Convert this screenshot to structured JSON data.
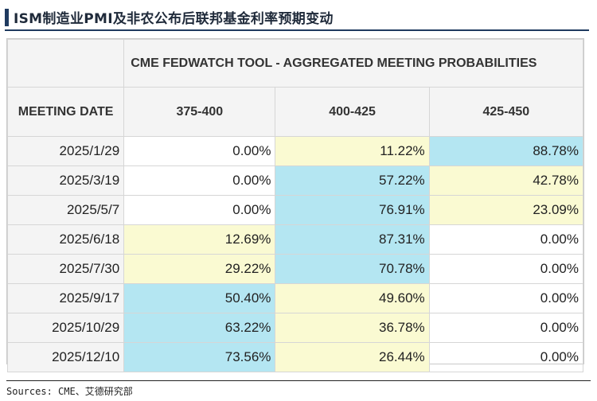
{
  "title": "ISM制造业PMI及非农公布后联邦基金利率预期变动",
  "table": {
    "banner": "CME FEDWATCH TOOL - AGGREGATED MEETING PROBABILITIES",
    "date_header": "MEETING DATE",
    "columns": [
      "375-400",
      "400-425",
      "425-450"
    ],
    "rows": [
      {
        "date": "2025/1/29",
        "values": [
          "0.00%",
          "11.22%",
          "88.78%"
        ],
        "highlights": [
          "none",
          "yellow",
          "blue"
        ]
      },
      {
        "date": "2025/3/19",
        "values": [
          "0.00%",
          "57.22%",
          "42.78%"
        ],
        "highlights": [
          "none",
          "blue",
          "yellow"
        ]
      },
      {
        "date": "2025/5/7",
        "values": [
          "0.00%",
          "76.91%",
          "23.09%"
        ],
        "highlights": [
          "none",
          "blue",
          "yellow"
        ]
      },
      {
        "date": "2025/6/18",
        "values": [
          "12.69%",
          "87.31%",
          "0.00%"
        ],
        "highlights": [
          "yellow",
          "blue",
          "none"
        ]
      },
      {
        "date": "2025/7/30",
        "values": [
          "29.22%",
          "70.78%",
          "0.00%"
        ],
        "highlights": [
          "yellow",
          "blue",
          "none"
        ]
      },
      {
        "date": "2025/9/17",
        "values": [
          "50.40%",
          "49.60%",
          "0.00%"
        ],
        "highlights": [
          "blue",
          "yellow",
          "none"
        ]
      },
      {
        "date": "2025/10/29",
        "values": [
          "63.22%",
          "36.78%",
          "0.00%"
        ],
        "highlights": [
          "blue",
          "yellow",
          "none"
        ]
      },
      {
        "date": "2025/12/10",
        "values": [
          "73.56%",
          "26.44%",
          "0.00%"
        ],
        "highlights": [
          "blue",
          "yellow",
          "none"
        ]
      }
    ]
  },
  "source": "Sources: CME、艾德研究部",
  "colors": {
    "highlight_blue": "#b4e6f2",
    "highlight_yellow": "#fafad2",
    "accent": "#1f3a5f"
  }
}
